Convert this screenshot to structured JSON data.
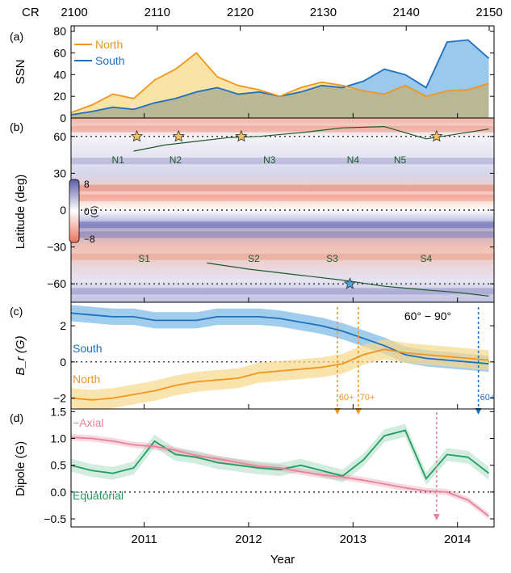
{
  "figure": {
    "cr_label": "CR",
    "cr_ticks": [
      "2100",
      "2110",
      "2120",
      "2130",
      "2140",
      "2150"
    ],
    "year_ticks": [
      "2011",
      "2012",
      "2013",
      "2014"
    ],
    "xlabel": "Year"
  },
  "colors": {
    "north": "#f0961e",
    "south": "#1f6fbe",
    "north_fill": "#f7d98a",
    "south_fill": "#8fc3ea",
    "overlap_fill": "#b9b896",
    "contour": "#1d5a2a",
    "axial": "#e8829a",
    "equatorial": "#1f9e5e",
    "positive": "#e8735a",
    "negative": "#5b5ba8"
  },
  "chart_data": [
    {
      "type": "area",
      "panel_label": "(a)",
      "ylabel": "SSN",
      "ylim": [
        0,
        85
      ],
      "yticks": [
        "0",
        "20",
        "40",
        "60",
        "80"
      ],
      "legend_position": "top-left",
      "x": [
        2010.3,
        2010.5,
        2010.7,
        2010.9,
        2011.1,
        2011.3,
        2011.5,
        2011.7,
        2011.9,
        2012.1,
        2012.3,
        2012.5,
        2012.7,
        2012.9,
        2013.1,
        2013.3,
        2013.5,
        2013.7,
        2013.9,
        2014.1,
        2014.3
      ],
      "series": [
        {
          "name": "North",
          "values": [
            5,
            12,
            22,
            18,
            35,
            45,
            60,
            38,
            30,
            26,
            20,
            28,
            33,
            30,
            25,
            22,
            30,
            20,
            25,
            26,
            32
          ]
        },
        {
          "name": "South",
          "values": [
            3,
            6,
            10,
            8,
            14,
            18,
            24,
            28,
            22,
            24,
            20,
            24,
            30,
            28,
            34,
            45,
            40,
            28,
            70,
            72,
            55
          ]
        }
      ]
    },
    {
      "type": "heatmap",
      "panel_label": "(b)",
      "ylabel": "Latitude (deg)",
      "ylim": [
        -75,
        75
      ],
      "yticks": [
        "60",
        "30",
        "0",
        "−30",
        "−60"
      ],
      "colorbar": {
        "max_label": "8",
        "mid_label": "0",
        "min_label": "−8",
        "unit": "(G)"
      },
      "surge_labels": [
        "N1",
        "N2",
        "N3",
        "N4",
        "N5",
        "S1",
        "S2",
        "S3",
        "S4"
      ],
      "polar_boundary_north": {
        "x": [
          2010.9,
          2011.2,
          2011.5,
          2011.8,
          2012.1,
          2012.5,
          2012.9,
          2013.3,
          2013.7,
          2014.0,
          2014.3
        ],
        "y": [
          48,
          53,
          56,
          59,
          60,
          63,
          67,
          68,
          58,
          62,
          66
        ]
      },
      "polar_boundary_south": {
        "x": [
          2011.6,
          2012.0,
          2012.5,
          2012.9,
          2013.3,
          2013.7,
          2014.0,
          2014.3
        ],
        "y": [
          -43,
          -48,
          -53,
          -57,
          -62,
          -65,
          -67,
          -70
        ]
      },
      "reversal_stars_north": {
        "x": [
          2010.93,
          2011.33,
          2011.93,
          2013.8
        ],
        "y": [
          60,
          60,
          60,
          60
        ]
      },
      "reversal_star_south": {
        "x": [
          2012.97
        ],
        "y": [
          -60
        ]
      }
    },
    {
      "type": "line",
      "panel_label": "(c)",
      "ylabel": "B_r (G)",
      "ylim": [
        -2.6,
        3.3
      ],
      "yticks": [
        "2",
        "0",
        "−2"
      ],
      "annotation": "60° − 90°",
      "markers": [
        {
          "label": "60+",
          "x": 2012.85,
          "color_key": "north"
        },
        {
          "label": "70+",
          "x": 2013.05,
          "color_key": "north"
        },
        {
          "label": "60+",
          "x": 2014.2,
          "color_key": "south"
        }
      ],
      "x": [
        2010.3,
        2010.5,
        2010.7,
        2010.9,
        2011.1,
        2011.3,
        2011.5,
        2011.7,
        2011.9,
        2012.1,
        2012.3,
        2012.5,
        2012.7,
        2012.9,
        2013.1,
        2013.3,
        2013.5,
        2013.7,
        2013.9,
        2014.1,
        2014.3
      ],
      "series": [
        {
          "name": "South",
          "values": [
            2.7,
            2.6,
            2.5,
            2.5,
            2.3,
            2.3,
            2.3,
            2.5,
            2.5,
            2.5,
            2.4,
            2.2,
            2.0,
            1.7,
            1.3,
            0.9,
            0.4,
            0.2,
            0.1,
            0.0,
            -0.1
          ]
        },
        {
          "name": "North",
          "values": [
            -2.0,
            -2.1,
            -2.0,
            -1.8,
            -1.6,
            -1.3,
            -1.1,
            -1.0,
            -0.9,
            -0.6,
            -0.5,
            -0.4,
            -0.3,
            -0.1,
            0.4,
            0.7,
            0.5,
            0.4,
            0.3,
            0.2,
            0.1
          ]
        }
      ],
      "band_halfwidth": [
        0.45,
        0.55
      ]
    },
    {
      "type": "line",
      "panel_label": "(d)",
      "ylabel": "Dipole (G)",
      "ylim": [
        -0.65,
        1.55
      ],
      "yticks": [
        "1.5",
        "1.0",
        "0.5",
        "0.0",
        "−0.5"
      ],
      "marker_x": 2013.8,
      "x": [
        2010.3,
        2010.5,
        2010.7,
        2010.9,
        2011.1,
        2011.3,
        2011.5,
        2011.7,
        2011.9,
        2012.1,
        2012.3,
        2012.5,
        2012.7,
        2012.9,
        2013.1,
        2013.3,
        2013.5,
        2013.7,
        2013.9,
        2014.1,
        2014.3
      ],
      "series": [
        {
          "name": "−Axial",
          "values": [
            1.02,
            1.0,
            0.95,
            0.88,
            0.85,
            0.78,
            0.68,
            0.62,
            0.55,
            0.48,
            0.45,
            0.38,
            0.32,
            0.28,
            0.22,
            0.15,
            0.08,
            0.02,
            0.0,
            -0.15,
            -0.45
          ]
        },
        {
          "name": "Equatorial",
          "values": [
            0.5,
            0.4,
            0.35,
            0.45,
            0.95,
            0.7,
            0.65,
            0.55,
            0.5,
            0.45,
            0.42,
            0.5,
            0.4,
            0.3,
            0.6,
            1.05,
            1.15,
            0.25,
            0.7,
            0.65,
            0.35
          ]
        }
      ]
    }
  ]
}
